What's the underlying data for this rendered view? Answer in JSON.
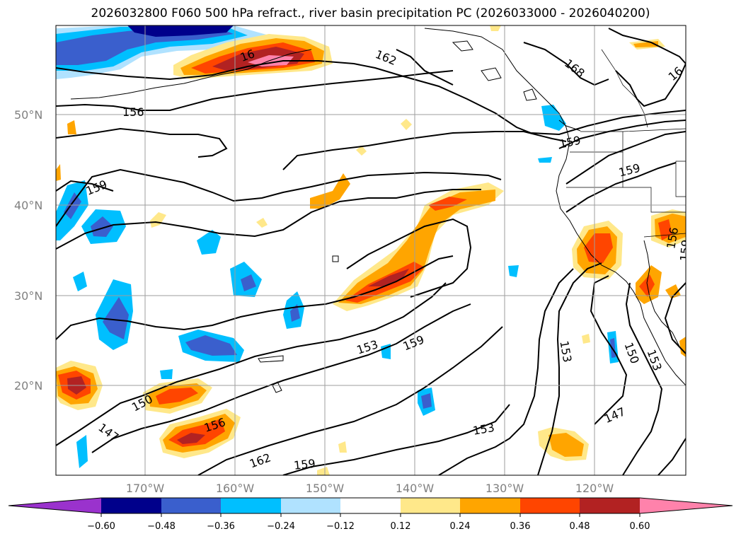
{
  "title": "2026032800 F060 500 hPa refract., river basin precipitation PC (2026033000 - 2026040200)",
  "map": {
    "lat_ticks": [
      "50°N",
      "40°N",
      "30°N",
      "20°N"
    ],
    "lon_ticks": [
      "170°W",
      "160°W",
      "150°W",
      "140°W",
      "130°W",
      "120°W"
    ],
    "grid": true
  },
  "contour_labels": [
    "156",
    "162",
    "168",
    "16",
    "159",
    "159",
    "159",
    "156",
    "159",
    "153",
    "159",
    "150",
    "156",
    "147",
    "162",
    "159",
    "153",
    "153",
    "150",
    "153",
    "147",
    "16"
  ],
  "colorbar": {
    "ticks": [
      "−0.60",
      "−0.48",
      "−0.36",
      "−0.24",
      "−0.12",
      "0.12",
      "0.24",
      "0.36",
      "0.48",
      "0.60"
    ],
    "colors": [
      "#9a32cd",
      "#00008b",
      "#3a5fcd",
      "#00bfff",
      "#b0e2ff",
      "#ffffff",
      "#ffe88a",
      "#ffa500",
      "#ff4500",
      "#b22222",
      "#ff82ab"
    ]
  },
  "colors": {
    "strong_negative": "#3a5fcd",
    "negative": "#00bfff",
    "weak_negative": "#b0e2ff",
    "weak_positive": "#ffe88a",
    "positive": "#ffa500",
    "strong_positive": "#ff4500",
    "very_strong_positive": "#b22222",
    "extreme_positive": "#ff82ab",
    "contour": "#000000",
    "grid": "#9e9e9e"
  }
}
